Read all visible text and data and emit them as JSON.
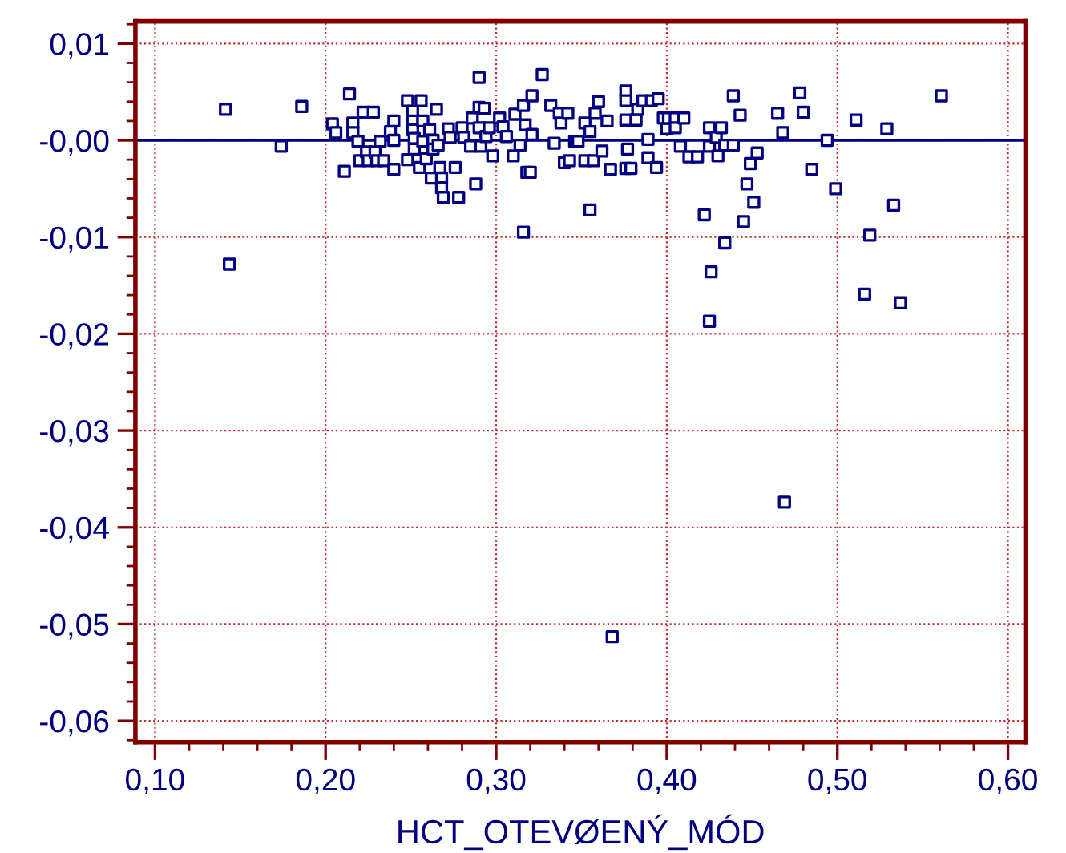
{
  "chart_data": {
    "type": "scatter",
    "xlabel": "HCT_OTEVØENÝ_MÓD",
    "marker": "square",
    "grid": true,
    "legend": false,
    "xlim": [
      0.0885,
      0.6103
    ],
    "ylim": [
      -0.0622,
      0.0123
    ],
    "xticks": [
      {
        "value": 0.1,
        "label": "0,10"
      },
      {
        "value": 0.2,
        "label": "0,20"
      },
      {
        "value": 0.3,
        "label": "0,30"
      },
      {
        "value": 0.4,
        "label": "0,40"
      },
      {
        "value": 0.5,
        "label": "0,50"
      },
      {
        "value": 0.6,
        "label": "0,60"
      }
    ],
    "yticks": [
      {
        "value": -0.06,
        "label": "-0,06"
      },
      {
        "value": -0.05,
        "label": "-0,05"
      },
      {
        "value": -0.04,
        "label": "-0,04"
      },
      {
        "value": -0.03,
        "label": "-0,03"
      },
      {
        "value": -0.02,
        "label": "-0,02"
      },
      {
        "value": -0.01,
        "label": "-0,01"
      },
      {
        "value": 0,
        "label": "-0,00"
      },
      {
        "value": 0.01,
        "label": "0,01"
      }
    ],
    "ref_lines": [
      {
        "axis": "y",
        "value": 0,
        "color": "#000080",
        "line_style": "solid"
      }
    ],
    "series": [
      {
        "color": "#000080",
        "x": [
          0.1413,
          0.1436,
          0.174,
          0.186,
          0.204,
          0.206,
          0.211,
          0.214,
          0.216,
          0.216,
          0.219,
          0.22,
          0.222,
          0.224,
          0.225,
          0.228,
          0.229,
          0.23,
          0.232,
          0.234,
          0.238,
          0.24,
          0.24,
          0.24,
          0.248,
          0.248,
          0.251,
          0.251,
          0.251,
          0.252,
          0.252,
          0.255,
          0.256,
          0.257,
          0.257,
          0.259,
          0.261,
          0.262,
          0.263,
          0.263,
          0.265,
          0.266,
          0.267,
          0.268,
          0.268,
          0.269,
          0.272,
          0.273,
          0.276,
          0.278,
          0.28,
          0.281,
          0.285,
          0.286,
          0.288,
          0.29,
          0.29,
          0.29,
          0.291,
          0.293,
          0.294,
          0.296,
          0.298,
          0.302,
          0.304,
          0.306,
          0.31,
          0.311,
          0.314,
          0.316,
          0.316,
          0.317,
          0.318,
          0.32,
          0.321,
          0.321,
          0.327,
          0.332,
          0.334,
          0.337,
          0.338,
          0.34,
          0.342,
          0.343,
          0.346,
          0.348,
          0.352,
          0.352,
          0.355,
          0.355,
          0.357,
          0.358,
          0.36,
          0.362,
          0.365,
          0.367,
          0.368,
          0.376,
          0.376,
          0.376,
          0.376,
          0.377,
          0.379,
          0.382,
          0.383,
          0.386,
          0.389,
          0.389,
          0.391,
          0.394,
          0.395,
          0.398,
          0.4,
          0.401,
          0.405,
          0.405,
          0.408,
          0.41,
          0.413,
          0.418,
          0.422,
          0.425,
          0.425,
          0.425,
          0.426,
          0.429,
          0.43,
          0.432,
          0.434,
          0.434,
          0.439,
          0.439,
          0.443,
          0.445,
          0.447,
          0.449,
          0.451,
          0.453,
          0.465,
          0.468,
          0.469,
          0.478,
          0.48,
          0.485,
          0.494,
          0.499,
          0.511,
          0.516,
          0.519,
          0.529,
          0.533,
          0.537,
          0.561
        ],
        "values": [
          0.0032,
          -0.0128,
          -0.0006,
          0.0035,
          0.0017,
          0.0008,
          -0.0032,
          0.0048,
          0.0018,
          0.0008,
          -0.0001,
          -0.0021,
          0.0029,
          -0.0012,
          -0.0021,
          0.0029,
          -0.0012,
          -0.0021,
          -0.0001,
          -0.0021,
          0.0009,
          0.002,
          0.0,
          -0.003,
          0.0041,
          -0.002,
          0.003,
          0.002,
          0.0011,
          0.0002,
          -0.0009,
          -0.0028,
          0.0041,
          0.002,
          -0.0001,
          -0.0019,
          0.0011,
          -0.0039,
          0.0,
          -0.0009,
          0.0032,
          -0.0005,
          -0.0028,
          -0.0039,
          -0.0049,
          -0.0059,
          0.0012,
          0.0003,
          -0.0028,
          -0.0059,
          0.0013,
          0.0003,
          -0.0006,
          0.0023,
          -0.0045,
          0.0065,
          0.0034,
          0.0013,
          -0.0006,
          0.0033,
          0.0004,
          0.0013,
          -0.0016,
          0.0023,
          0.0014,
          0.0004,
          -0.0016,
          0.0027,
          -0.0005,
          0.0036,
          -0.0095,
          0.0016,
          -0.0033,
          -0.0033,
          0.0006,
          0.0046,
          0.0068,
          0.0036,
          -0.0003,
          0.0028,
          0.0018,
          -0.0023,
          0.0028,
          -0.0021,
          -0.0001,
          -0.0001,
          0.0018,
          -0.0021,
          -0.0072,
          0.0009,
          -0.0021,
          0.0028,
          0.004,
          -0.0011,
          0.002,
          -0.003,
          -0.0513,
          0.0051,
          0.0041,
          -0.0029,
          0.0021,
          -0.0009,
          -0.0029,
          0.0021,
          0.0032,
          0.0041,
          0.0001,
          -0.0018,
          0.0041,
          -0.0028,
          0.0043,
          0.0023,
          0.0012,
          0.0023,
          0.0023,
          0.0013,
          -0.0006,
          0.0023,
          -0.0017,
          -0.0017,
          -0.0077,
          -0.0187,
          0.0013,
          -0.0006,
          -0.0136,
          0.0003,
          -0.0016,
          0.0013,
          -0.0106,
          -0.0005,
          0.0046,
          -0.0005,
          0.0026,
          -0.0084,
          -0.0045,
          -0.0024,
          -0.0064,
          -0.0013,
          0.0028,
          0.0008,
          -0.0374,
          0.0049,
          0.0029,
          -0.003,
          0.0,
          -0.005,
          0.0021,
          -0.0159,
          -0.0098,
          0.0012,
          -0.0067,
          -0.0168,
          0.0046
        ]
      }
    ]
  }
}
